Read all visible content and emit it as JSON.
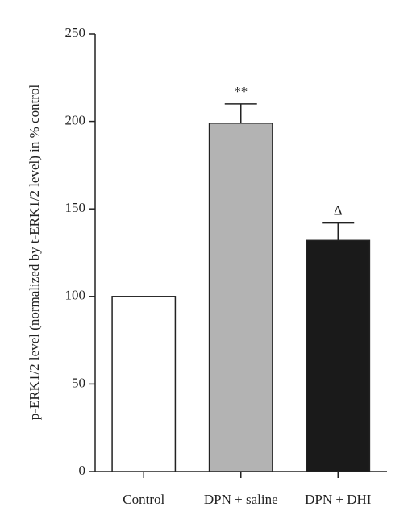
{
  "chart_data": {
    "type": "bar",
    "y_label": "p-ERK1/2 level (normalized by t-ERK1/2 level) in % control",
    "categories": [
      "Control",
      "DPN + saline",
      "DPN + DHI"
    ],
    "values": [
      100,
      199,
      132
    ],
    "errors": [
      null,
      11,
      10
    ],
    "annotations": [
      null,
      "**",
      "Δ"
    ],
    "colors": [
      "#ffffff",
      "#b3b3b3",
      "#1a1a1a"
    ],
    "ylim": [
      0,
      250
    ],
    "yticks": [
      0,
      50,
      100,
      150,
      200,
      250
    ],
    "grid": false
  }
}
